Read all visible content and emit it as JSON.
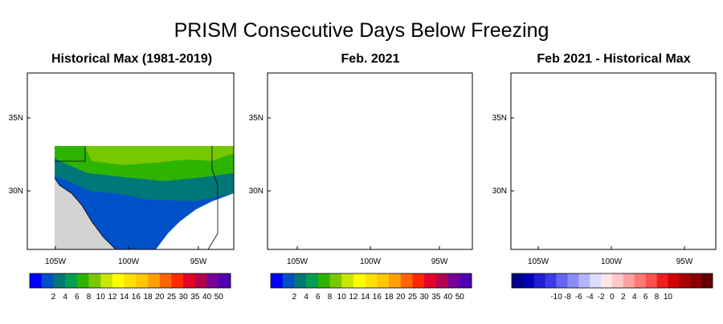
{
  "title": "PRISM Consecutive Days Below Freezing",
  "colors": {
    "land_mask": "#d3d3d3",
    "ocean": "#ffffff",
    "boundary": "#000000"
  },
  "panels": [
    {
      "title": "Historical Max (1981-2019)",
      "lat_ticks": [
        "35N",
        "30N"
      ],
      "lon_ticks": [
        "105W",
        "100W",
        "95W"
      ],
      "colorbar": {
        "labels": [
          "2",
          "4",
          "6",
          "8",
          "10",
          "12",
          "14",
          "16",
          "18",
          "20",
          "25",
          "30",
          "35",
          "40",
          "50"
        ],
        "colors": [
          "#0000ff",
          "#0050c8",
          "#007878",
          "#00a050",
          "#2db400",
          "#78c800",
          "#c8e600",
          "#ffff00",
          "#ffe100",
          "#ffc800",
          "#ffa000",
          "#ff6400",
          "#ff2800",
          "#e60028",
          "#b40050",
          "#780096",
          "#5000b4"
        ]
      }
    },
    {
      "title": "Feb. 2021",
      "lat_ticks": [
        "35N",
        "30N"
      ],
      "lon_ticks": [
        "105W",
        "100W",
        "95W"
      ],
      "colorbar": {
        "labels": [
          "2",
          "4",
          "6",
          "8",
          "10",
          "12",
          "14",
          "16",
          "18",
          "20",
          "25",
          "30",
          "35",
          "40",
          "50"
        ],
        "colors": [
          "#0000ff",
          "#0050c8",
          "#007878",
          "#00a050",
          "#2db400",
          "#78c800",
          "#c8e600",
          "#ffff00",
          "#ffe100",
          "#ffc800",
          "#ffa000",
          "#ff6400",
          "#ff2800",
          "#e60028",
          "#b40050",
          "#780096",
          "#5000b4"
        ]
      }
    },
    {
      "title": "Feb 2021 - Historical Max",
      "lat_ticks": [
        "35N",
        "30N"
      ],
      "lon_ticks": [
        "105W",
        "100W",
        "95W"
      ],
      "colorbar": {
        "labels": [
          "-10",
          "-8",
          "-6",
          "-4",
          "-2",
          "0",
          "2",
          "4",
          "6",
          "8",
          "10"
        ],
        "colors": [
          "#00008c",
          "#0000b4",
          "#1e1ed2",
          "#3c3ce6",
          "#6464f0",
          "#8c8cf5",
          "#b4b4fa",
          "#dcdcff",
          "#ffe6e6",
          "#ffc8c8",
          "#ffa0a0",
          "#ff7878",
          "#ff5050",
          "#f01e1e",
          "#d20000",
          "#aa0000",
          "#8c0000",
          "#640000"
        ]
      }
    }
  ]
}
